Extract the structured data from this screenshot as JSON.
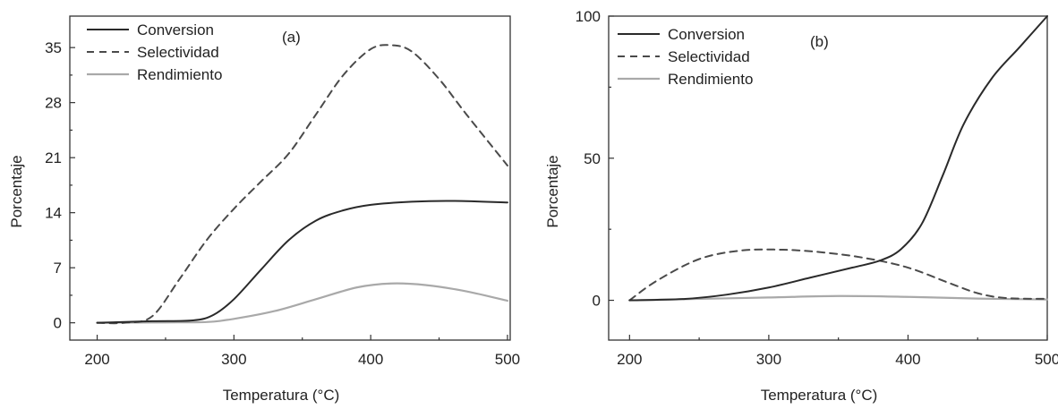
{
  "colors": {
    "conversion": "#2a2a2a",
    "selectividad": "#4a4a4a",
    "rendimiento": "#a9a9a9"
  },
  "chart_data": [
    {
      "type": "line",
      "panel_label": "(a)",
      "xlabel": "Temperatura (°C)",
      "ylabel": "Porcentaje",
      "xlim": [
        180,
        502
      ],
      "ylim": [
        -2.2,
        39
      ],
      "xticks": [
        200,
        300,
        400,
        500
      ],
      "yticks": [
        0,
        7,
        14,
        21,
        28,
        35
      ],
      "xtick_labels": [
        "200",
        "300",
        "400",
        "500"
      ],
      "ytick_labels": [
        "0",
        "7",
        "14",
        "21",
        "28",
        "35"
      ],
      "legend": "top-left",
      "series": [
        {
          "name": "Conversion",
          "style": "solid",
          "color_key": "conversion",
          "x": [
            200,
            240,
            270,
            285,
            300,
            320,
            340,
            360,
            380,
            400,
            430,
            460,
            500
          ],
          "y": [
            0.0,
            0.2,
            0.3,
            1.0,
            3.0,
            6.8,
            10.5,
            13.0,
            14.3,
            15.0,
            15.4,
            15.5,
            15.3
          ]
        },
        {
          "name": "Selectividad",
          "style": "dashed",
          "color_key": "selectividad",
          "x": [
            200,
            220,
            240,
            260,
            280,
            300,
            320,
            340,
            360,
            380,
            400,
            415,
            430,
            450,
            470,
            500
          ],
          "y": [
            0.0,
            0.0,
            0.8,
            5.5,
            10.5,
            14.5,
            18.0,
            21.5,
            26.5,
            31.5,
            34.8,
            35.3,
            34.5,
            31.0,
            26.5,
            20.0
          ]
        },
        {
          "name": "Rendimiento",
          "style": "solid",
          "color_key": "rendimiento",
          "x": [
            200,
            250,
            280,
            300,
            330,
            360,
            390,
            415,
            440,
            470,
            500
          ],
          "y": [
            0.0,
            0.05,
            0.1,
            0.5,
            1.5,
            3.0,
            4.5,
            5.0,
            4.8,
            4.0,
            2.8
          ]
        }
      ]
    },
    {
      "type": "line",
      "panel_label": "(b)",
      "xlabel": "Temperatura (°C)",
      "ylabel": "Porcentaje",
      "xlim": [
        185,
        500
      ],
      "ylim": [
        -14,
        100
      ],
      "xticks": [
        200,
        300,
        400,
        500
      ],
      "yticks": [
        0,
        50,
        100
      ],
      "xtick_labels": [
        "200",
        "300",
        "400",
        "500"
      ],
      "ytick_labels": [
        "0",
        "50",
        "100"
      ],
      "legend": "top-left",
      "series": [
        {
          "name": "Conversion",
          "style": "solid",
          "color_key": "conversion",
          "x": [
            200,
            240,
            270,
            300,
            330,
            360,
            380,
            395,
            410,
            425,
            440,
            460,
            480,
            500
          ],
          "y": [
            0.0,
            0.5,
            2.0,
            4.5,
            8.0,
            11.5,
            14.0,
            18.0,
            27.0,
            44.0,
            62.0,
            78.0,
            89.0,
            100.0
          ]
        },
        {
          "name": "Selectividad",
          "style": "dashed",
          "color_key": "selectividad",
          "x": [
            200,
            220,
            250,
            280,
            310,
            340,
            370,
            400,
            430,
            450,
            470,
            500
          ],
          "y": [
            0.0,
            7.0,
            14.5,
            17.5,
            17.8,
            16.8,
            14.8,
            11.5,
            6.0,
            2.5,
            0.8,
            0.5
          ]
        },
        {
          "name": "Rendimiento",
          "style": "solid",
          "color_key": "rendimiento",
          "x": [
            200,
            250,
            300,
            350,
            400,
            450,
            500
          ],
          "y": [
            0.0,
            0.5,
            1.0,
            1.5,
            1.2,
            0.6,
            0.3
          ]
        }
      ]
    }
  ]
}
